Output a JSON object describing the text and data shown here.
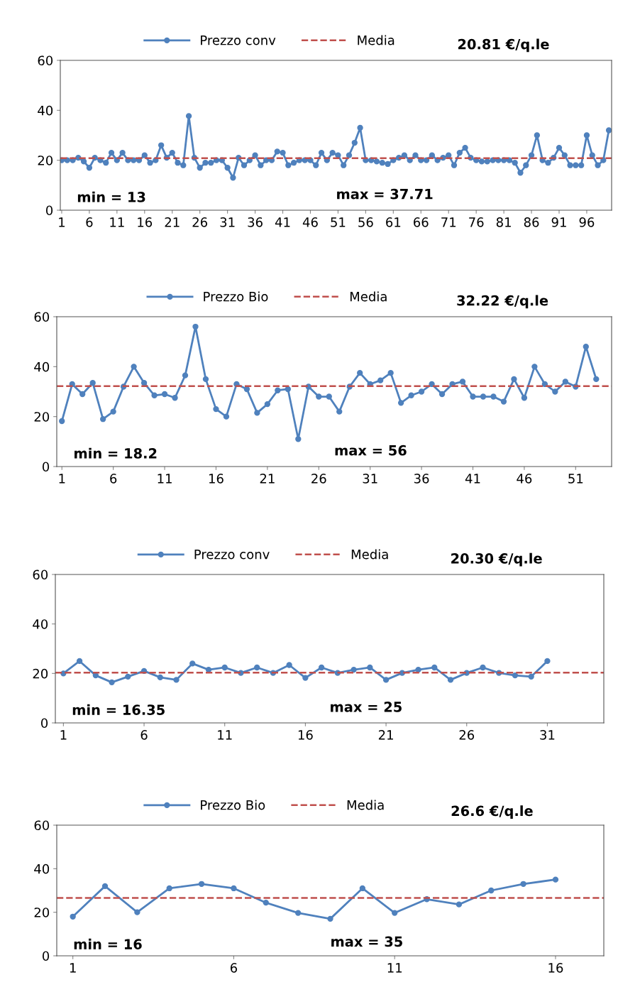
{
  "chart_data": [
    {
      "type": "line",
      "x": [
        1,
        2,
        3,
        4,
        5,
        6,
        7,
        8,
        9,
        10,
        11,
        12,
        13,
        14,
        15,
        16,
        17,
        18,
        19,
        20,
        21,
        22,
        23,
        24,
        25,
        26,
        27,
        28,
        29,
        30,
        31,
        32,
        33,
        34,
        35,
        36,
        37,
        38,
        39,
        40,
        41,
        42,
        43,
        44,
        45,
        46,
        47,
        48,
        49,
        50,
        51,
        52,
        53,
        54,
        55,
        56,
        57,
        58,
        59,
        60,
        61,
        62,
        63,
        64,
        65,
        66,
        67,
        68,
        69,
        70,
        71,
        72,
        73,
        74,
        75,
        76,
        77,
        78,
        79,
        80,
        81,
        82,
        83,
        84,
        85,
        86,
        87,
        88,
        89,
        90,
        91,
        92,
        93,
        94,
        95,
        96,
        97,
        98,
        99,
        100
      ],
      "series": [
        {
          "name": "Prezzo conv",
          "color": "#4f81bd",
          "values": [
            20,
            20,
            20,
            21,
            19.5,
            17,
            21,
            20,
            19,
            23,
            20,
            23,
            20,
            20,
            20,
            22,
            19,
            20,
            26,
            21,
            23,
            19,
            18,
            37.71,
            21,
            17,
            19,
            19,
            20,
            20,
            17,
            13,
            21,
            18,
            20,
            22,
            18,
            20,
            20,
            23.5,
            23,
            18,
            19,
            20,
            20,
            20,
            18,
            23,
            20,
            23,
            22,
            18,
            22,
            27,
            33,
            20,
            20,
            19.5,
            19,
            18.5,
            20,
            21,
            22,
            20,
            22,
            20,
            20,
            22,
            20,
            21,
            22,
            18,
            23,
            25,
            21,
            20,
            19.5,
            19.5,
            20,
            20,
            20,
            20,
            19,
            15,
            18,
            22,
            30,
            20,
            19,
            21,
            25,
            22,
            18,
            18,
            18,
            30,
            22,
            18,
            20,
            32
          ]
        }
      ],
      "ref_lines": [
        {
          "axis": "y",
          "value": 20.81,
          "label": "Media",
          "color": "#c0504d",
          "line_style": "dashed"
        }
      ],
      "annotations": [
        "20.81 €/q.le",
        "min = 13",
        "max = 37.71"
      ],
      "xlim": [
        0.75,
        100.5
      ],
      "xticks": [
        1,
        6,
        11,
        16,
        21,
        26,
        31,
        36,
        41,
        46,
        51,
        56,
        61,
        66,
        71,
        76,
        81,
        86,
        91,
        96
      ],
      "ylim": [
        0,
        60
      ],
      "yticks": [
        0,
        20,
        40,
        60
      ],
      "marker": "circle",
      "line_style": "solid",
      "legend": "top",
      "grid": false
    },
    {
      "type": "line",
      "x": [
        1,
        2,
        3,
        4,
        5,
        6,
        7,
        8,
        9,
        10,
        11,
        12,
        13,
        14,
        15,
        16,
        17,
        18,
        19,
        20,
        21,
        22,
        23,
        24,
        25,
        26,
        27,
        28,
        29,
        30,
        31,
        32,
        33,
        34,
        35,
        36,
        37,
        38,
        39,
        40,
        41,
        42,
        43,
        44,
        45,
        46,
        47,
        48,
        49,
        50,
        51,
        52,
        53
      ],
      "series": [
        {
          "name": "Prezzo Bio",
          "color": "#4f81bd",
          "values": [
            18.2,
            33,
            29,
            33.5,
            19,
            22,
            32,
            40,
            33.5,
            28.5,
            29,
            27.5,
            36.5,
            56,
            35,
            23,
            20,
            33,
            31,
            21.5,
            25,
            30.5,
            31,
            11,
            32,
            28,
            28,
            22,
            32,
            37.5,
            33,
            34.5,
            37.5,
            25.5,
            28.5,
            30,
            33,
            29,
            33,
            34,
            28,
            28,
            28,
            26,
            35,
            27.5,
            40,
            33,
            30,
            34,
            32,
            48,
            35
          ]
        }
      ],
      "ref_lines": [
        {
          "axis": "y",
          "value": 32.22,
          "label": "Media",
          "color": "#c0504d",
          "line_style": "dashed"
        }
      ],
      "annotations": [
        "32.22 €/q.le",
        "min = 18.2",
        "max = 56"
      ],
      "xlim": [
        0.5,
        54.5
      ],
      "xticks": [
        1,
        6,
        11,
        16,
        21,
        26,
        31,
        36,
        41,
        46,
        51
      ],
      "ylim": [
        0,
        60
      ],
      "yticks": [
        0,
        20,
        40,
        60
      ],
      "marker": "circle",
      "line_style": "solid",
      "legend": "top",
      "grid": false
    },
    {
      "type": "line",
      "x": [
        1,
        2,
        3,
        4,
        5,
        6,
        7,
        8,
        9,
        10,
        11,
        12,
        13,
        14,
        15,
        16,
        17,
        18,
        19,
        20,
        21,
        22,
        23,
        24,
        25,
        26,
        27,
        28,
        29,
        30,
        31
      ],
      "series": [
        {
          "name": "Prezzo conv",
          "color": "#4f81bd",
          "values": [
            20,
            25,
            19.2,
            16.4,
            18.7,
            21,
            18.4,
            17.4,
            24,
            21.5,
            22.4,
            20.2,
            22.4,
            20.2,
            23.4,
            18.2,
            22.4,
            20.2,
            21.5,
            22.4,
            17.4,
            20.2,
            21.5,
            22.4,
            17.4,
            20.2,
            22.4,
            20.2,
            19.2,
            18.7,
            25
          ]
        }
      ],
      "ref_lines": [
        {
          "axis": "y",
          "value": 20.3,
          "label": "Media",
          "color": "#c0504d",
          "line_style": "dashed"
        }
      ],
      "annotations": [
        "20.30 €/q.le",
        "min = 16.35",
        "max = 25"
      ],
      "xlim": [
        0.5,
        34.5
      ],
      "xticks": [
        1,
        6,
        11,
        16,
        21,
        26,
        31
      ],
      "ylim": [
        0,
        60
      ],
      "yticks": [
        0,
        20,
        40,
        60
      ],
      "marker": "circle",
      "line_style": "solid",
      "legend": "top",
      "grid": false
    },
    {
      "type": "line",
      "x": [
        1,
        2,
        3,
        4,
        5,
        6,
        7,
        8,
        9,
        10,
        11,
        12,
        13,
        14,
        15,
        16
      ],
      "series": [
        {
          "name": "Prezzo Bio",
          "color": "#4f81bd",
          "values": [
            18,
            32,
            20,
            31,
            33,
            31,
            24.4,
            19.7,
            17,
            31,
            19.7,
            26,
            23.6,
            30,
            33,
            35
          ]
        }
      ],
      "ref_lines": [
        {
          "axis": "y",
          "value": 26.6,
          "label": "Media",
          "color": "#c0504d",
          "line_style": "dashed"
        }
      ],
      "annotations": [
        "26.6 €/q.le",
        "min = 16",
        "max = 35"
      ],
      "xlim": [
        0.5,
        17.5
      ],
      "xticks": [
        1,
        6,
        11,
        16
      ],
      "ylim": [
        0,
        60
      ],
      "yticks": [
        0,
        20,
        40,
        60
      ],
      "marker": "circle",
      "line_style": "solid",
      "legend": "top",
      "grid": false
    }
  ]
}
